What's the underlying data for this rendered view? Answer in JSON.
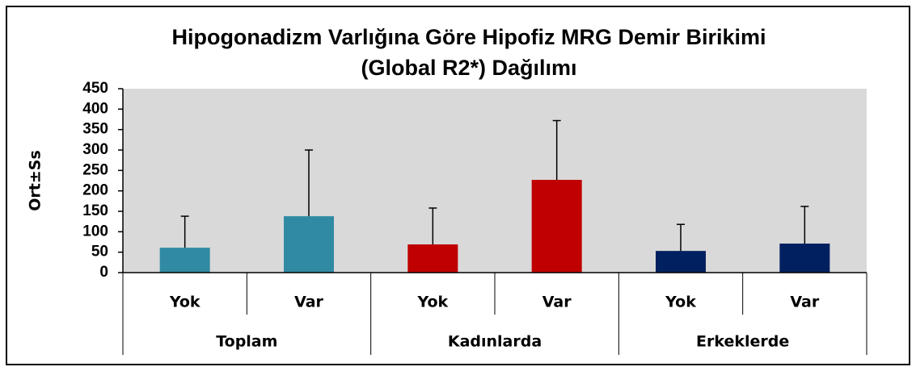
{
  "chart_data": {
    "type": "bar",
    "title": [
      "Hipogonadizm Varlığına Göre Hipofiz MRG Demir Birikimi",
      "(Global R2*) Dağılımı"
    ],
    "y_label": "Ort±Ss",
    "categories": [
      "Yok",
      "Var",
      "Yok",
      "Var",
      "Yok",
      "Var"
    ],
    "groups": [
      "Toplam",
      "Kadınlarda",
      "Erkeklerde"
    ],
    "values": [
      61,
      138,
      69,
      227,
      53,
      71
    ],
    "errors": [
      77,
      162,
      89,
      145,
      65,
      91
    ],
    "colors": [
      "#318aa3",
      "#318aa3",
      "#c00000",
      "#c00000",
      "#002060",
      "#002060"
    ],
    "ylim": [
      0,
      450
    ],
    "yticks": [
      0,
      50,
      100,
      150,
      200,
      250,
      300,
      350,
      400,
      450
    ],
    "plot_background": "#d9d9d9",
    "grid": false
  }
}
